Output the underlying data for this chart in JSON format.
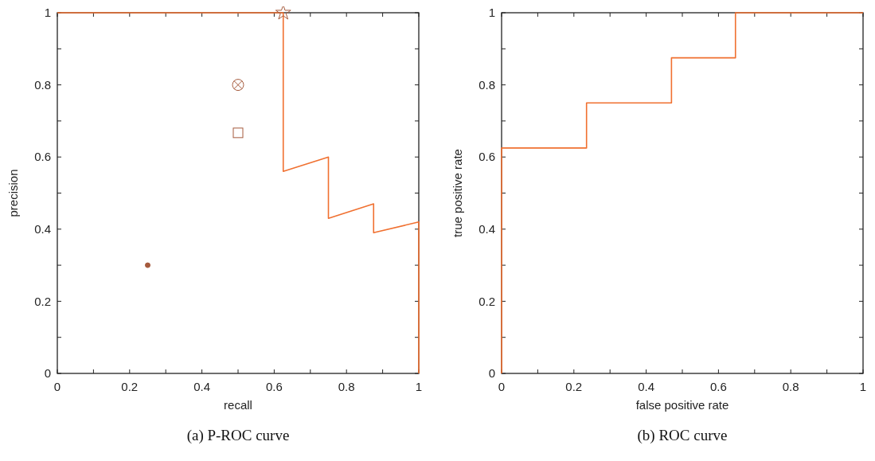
{
  "chart_data": [
    {
      "type": "line",
      "title": "(a) P-ROC curve",
      "xlabel": "recall",
      "ylabel": "precision",
      "xlim": [
        0,
        1
      ],
      "ylim": [
        0,
        1
      ],
      "xticks": [
        0,
        {
          "value": 0.1,
          "label": null
        },
        0.2,
        {
          "value": 0.3,
          "label": null
        },
        0.4,
        {
          "value": 0.5,
          "label": null
        },
        0.6,
        {
          "value": 0.7,
          "label": null
        },
        0.8,
        {
          "value": 0.9,
          "label": null
        },
        1
      ],
      "yticks": [
        0,
        {
          "value": 0.1,
          "label": null
        },
        0.2,
        {
          "value": 0.3,
          "label": null
        },
        0.4,
        {
          "value": 0.5,
          "label": null
        },
        0.6,
        {
          "value": 0.7,
          "label": null
        },
        0.8,
        {
          "value": 0.9,
          "label": null
        },
        1
      ],
      "grid": false,
      "series": [
        {
          "color": "#f07030",
          "x": [
            0,
            0.625,
            0.625,
            0.75,
            0.75,
            0.875,
            0.875,
            1,
            1
          ],
          "values": [
            1,
            1,
            0.56,
            0.6,
            0.43,
            0.47,
            0.39,
            0.42,
            0
          ]
        },
        {
          "type": "scatter",
          "marker": "star",
          "color": "#a55a3c",
          "x": [
            0.625
          ],
          "values": [
            1
          ]
        },
        {
          "type": "scatter",
          "color": "#a55a3c",
          "x": [
            0.5
          ],
          "values": [
            0.8
          ]
        },
        {
          "type": "scatter",
          "marker": "square",
          "color": "#a55a3c",
          "x": [
            0.5
          ],
          "values": [
            0.667
          ]
        },
        {
          "type": "scatter",
          "marker": "circle",
          "color": "#a55a3c",
          "x": [
            0.25
          ],
          "values": [
            0.3
          ]
        }
      ]
    },
    {
      "type": "line",
      "title": "(b) ROC curve",
      "xlabel": "false positive rate",
      "ylabel": "true positive rate",
      "xlim": [
        0,
        1
      ],
      "ylim": [
        0,
        1
      ],
      "xticks": [
        0,
        {
          "value": 0.1,
          "label": null
        },
        0.2,
        {
          "value": 0.3,
          "label": null
        },
        0.4,
        {
          "value": 0.5,
          "label": null
        },
        0.6,
        {
          "value": 0.7,
          "label": null
        },
        0.8,
        {
          "value": 0.9,
          "label": null
        },
        1
      ],
      "yticks": [
        0,
        {
          "value": 0.1,
          "label": null
        },
        0.2,
        {
          "value": 0.3,
          "label": null
        },
        0.4,
        {
          "value": 0.5,
          "label": null
        },
        0.6,
        {
          "value": 0.7,
          "label": null
        },
        0.8,
        {
          "value": 0.9,
          "label": null
        },
        1
      ],
      "grid": false,
      "series": [
        {
          "color": "#f07030",
          "x": [
            0,
            0,
            0.235,
            0.235,
            0.47,
            0.47,
            0.647,
            0.647,
            1
          ],
          "values": [
            0,
            0.625,
            0.625,
            0.75,
            0.75,
            0.875,
            0.875,
            1,
            1
          ]
        }
      ]
    }
  ]
}
